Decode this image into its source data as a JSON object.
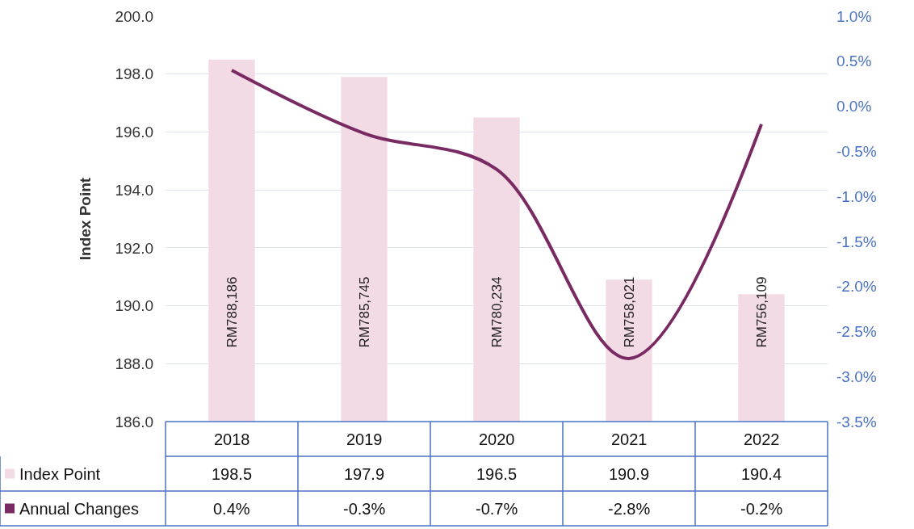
{
  "chart_data": {
    "type": "bar",
    "ylabel": "Index Point",
    "categories": [
      "2018",
      "2019",
      "2020",
      "2021",
      "2022"
    ],
    "series": [
      {
        "name": "Index Point",
        "color": "#f3dbe5",
        "values": [
          198.5,
          197.9,
          196.5,
          190.9,
          190.4
        ],
        "value_labels": [
          "198.5",
          "197.9",
          "196.5",
          "190.9",
          "190.4"
        ]
      },
      {
        "name": "Annual Changes",
        "type": "line",
        "axis": "y2",
        "color": "#7a2a62",
        "values": [
          0.4,
          -0.3,
          -0.7,
          -2.8,
          -0.2
        ],
        "value_labels": [
          "0.4%",
          "-0.3%",
          "-0.7%",
          "-2.8%",
          "-0.2%"
        ]
      }
    ],
    "ylim": [
      186,
      200
    ],
    "yticks": [
      {
        "value": 186,
        "label": "186.0"
      },
      {
        "value": 188,
        "label": "188.0"
      },
      {
        "value": 190,
        "label": "190.0"
      },
      {
        "value": 192,
        "label": "192.0"
      },
      {
        "value": 194,
        "label": "194.0"
      },
      {
        "value": 196,
        "label": "196.0"
      },
      {
        "value": 198,
        "label": "198.0"
      },
      {
        "value": 200,
        "label": "200.0"
      }
    ],
    "y2lim": [
      -3.5,
      1
    ],
    "y2ticks": [
      {
        "value": -3.5,
        "label": "-3.5%"
      },
      {
        "value": -3,
        "label": "-3.0%"
      },
      {
        "value": -2.5,
        "label": "-2.5%"
      },
      {
        "value": -2,
        "label": "-2.0%"
      },
      {
        "value": -1.5,
        "label": "-1.5%"
      },
      {
        "value": -1,
        "label": "-1.0%"
      },
      {
        "value": -0.5,
        "label": "-0.5%"
      },
      {
        "value": 0,
        "label": "0.0%"
      },
      {
        "value": 0.5,
        "label": "0.5%"
      },
      {
        "value": 1,
        "label": "1.0%"
      }
    ],
    "annotations": [
      "RM788,186",
      "RM785,745",
      "RM780,234",
      "RM758,021",
      "RM756,109"
    ],
    "grid": "y",
    "legend": "bottom left"
  }
}
